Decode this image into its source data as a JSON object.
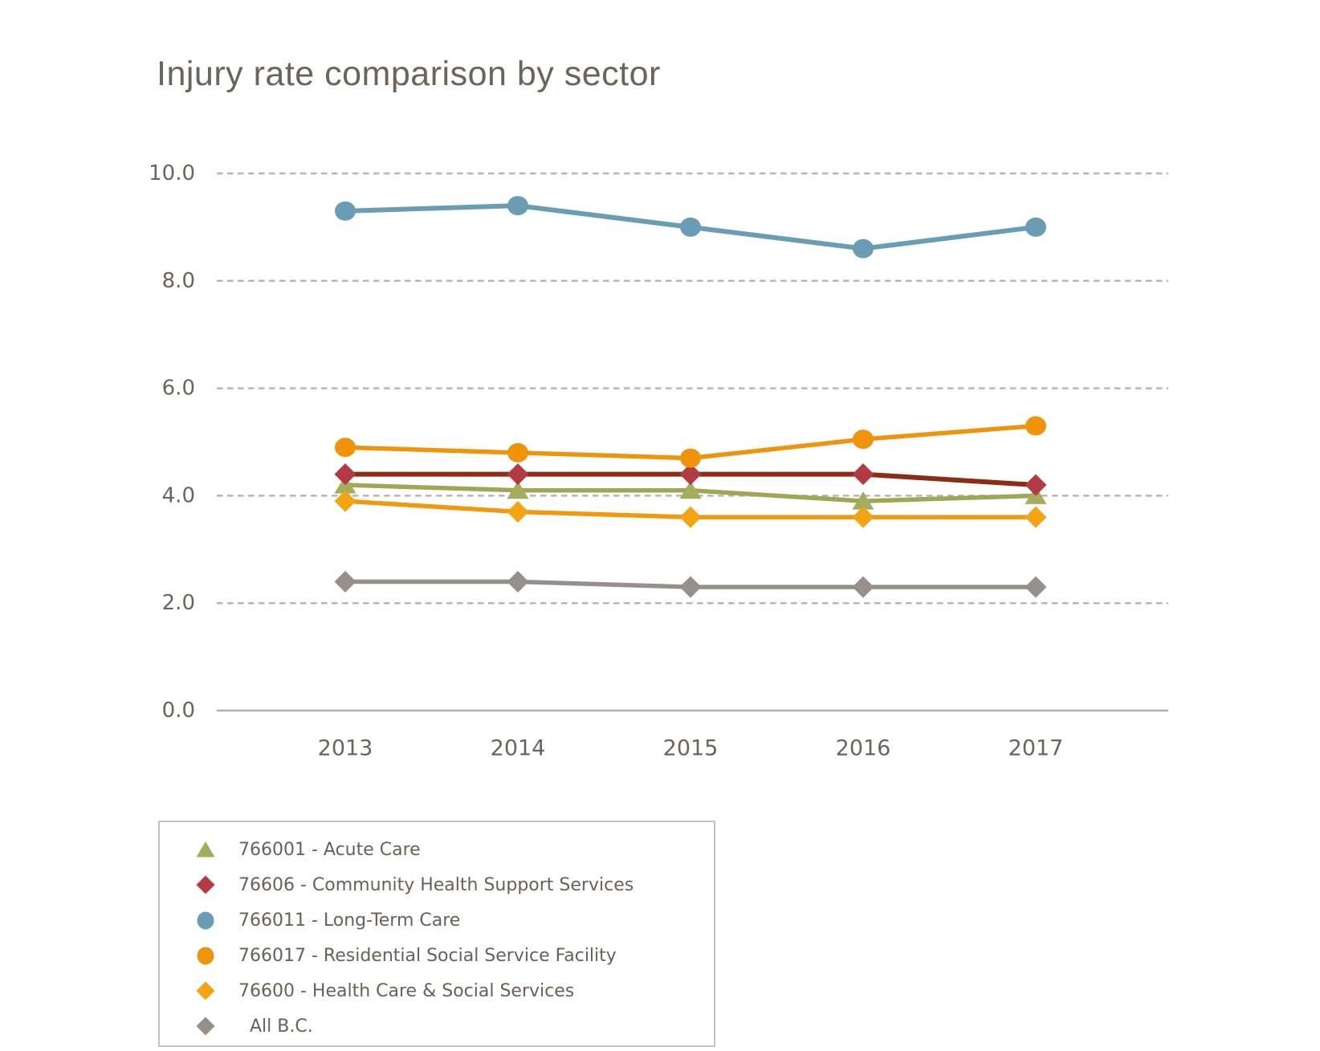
{
  "title": "Injury rate comparison by sector",
  "colors": {
    "title_text": "#6E6358",
    "tick_text": "#6E6358",
    "legend_text": "#6B6055",
    "gridline": "#B9B5AF",
    "axis_line": "#B3AFA9",
    "legend_border": "#C6C3BD",
    "background": "#FFFFFF"
  },
  "chart_data": {
    "type": "line",
    "title": "Injury rate comparison by sector",
    "categories": [
      "2013",
      "2014",
      "2015",
      "2016",
      "2017"
    ],
    "xlabel": "",
    "ylabel": "",
    "ylim": [
      0,
      10.5
    ],
    "yticks": [
      0,
      2,
      4,
      6,
      8,
      10
    ],
    "ytick_labels": [
      "0.0",
      "2.0",
      "4.0",
      "6.0",
      "8.0",
      "10.0"
    ],
    "grid": "horizontal dashed",
    "legend_position": "bottom-left boxed",
    "series": [
      {
        "name": "766001 - Acute Care",
        "marker": "triangle",
        "color": "#A6AB5E",
        "line_color": "#A0A654",
        "values": [
          4.2,
          4.1,
          4.1,
          3.9,
          4.0
        ]
      },
      {
        "name": "76606 - Community Health Support Services",
        "marker": "diamond",
        "color": "#B23A42",
        "line_color": "#8D2B14",
        "values": [
          4.4,
          4.4,
          4.4,
          4.4,
          4.2
        ]
      },
      {
        "name": "766011 - Long-Term Care",
        "marker": "circle",
        "color": "#6A9DB4",
        "line_color": "#6A9DB4",
        "values": [
          9.3,
          9.4,
          9.0,
          8.6,
          9.0
        ]
      },
      {
        "name": "766017 - Residential Social Service Facility",
        "marker": "circle",
        "color": "#EF930B",
        "line_color": "#EF930B",
        "values": [
          4.9,
          4.8,
          4.7,
          5.05,
          5.3
        ]
      },
      {
        "name": "76600 - Health Care & Social Services",
        "marker": "diamond",
        "color": "#F3A413",
        "line_color": "#F0990D",
        "values": [
          3.9,
          3.7,
          3.6,
          3.6,
          3.6
        ]
      },
      {
        "name": "  All B.C.",
        "marker": "diamond",
        "color": "#97908A",
        "line_color": "#97908A",
        "values": [
          2.4,
          2.4,
          2.3,
          2.3,
          2.3
        ]
      }
    ]
  }
}
